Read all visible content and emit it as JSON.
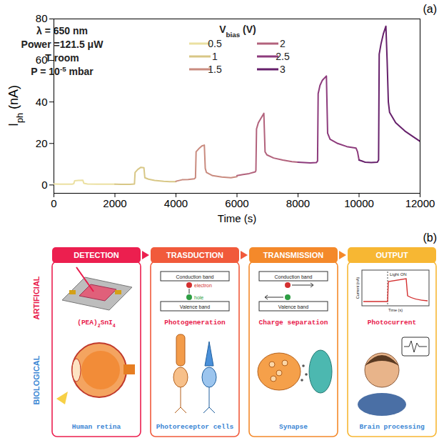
{
  "chart_data": {
    "type": "line",
    "panel_label": "(a)",
    "xlabel": "Time (s)",
    "ylabel": [
      "I",
      {
        "sub": "ph"
      },
      " (nA)"
    ],
    "xlim": [
      0,
      12000
    ],
    "xticks": [
      0,
      2000,
      4000,
      6000,
      8000,
      10000,
      12000
    ],
    "ylim": [
      -4,
      80
    ],
    "yticks": [
      0,
      20,
      40,
      60,
      80
    ],
    "annotations": [
      [
        "λ = 650 nm"
      ],
      [
        "Power =121.5 μW"
      ],
      [
        "T room"
      ],
      [
        "P = 10",
        {
          "sup": "-5"
        },
        " mbar"
      ]
    ],
    "legend": "top",
    "legend_title": [
      "V",
      {
        "sub": "bias"
      },
      " (V)"
    ],
    "series": [
      {
        "name": "0.5",
        "color": "#ebe0a1",
        "x": [
          0,
          200,
          400,
          600,
          650,
          680,
          800,
          950,
          980,
          1100,
          1400,
          1700,
          2000
        ],
        "values": [
          0.5,
          0.4,
          0.4,
          0.4,
          0.6,
          2.0,
          2.2,
          2.3,
          0.8,
          0.5,
          0.4,
          0.4,
          0.4
        ]
      },
      {
        "name": "1",
        "color": "#d8c786",
        "x": [
          2000,
          2200,
          2500,
          2640,
          2660,
          2750,
          2850,
          2950,
          2980,
          3100,
          3300,
          3600,
          3800,
          4000
        ],
        "values": [
          0.4,
          0.3,
          0.3,
          0.5,
          6.0,
          7.5,
          8.5,
          8.3,
          3.5,
          2.8,
          2.2,
          1.8,
          1.6,
          1.6
        ]
      },
      {
        "name": "1.5",
        "color": "#c98b7f",
        "x": [
          4000,
          4200,
          4400,
          4600,
          4640,
          4660,
          4750,
          4850,
          4930,
          4960,
          5000,
          5200,
          5500,
          5800,
          6000
        ],
        "values": [
          1.8,
          2.5,
          2.6,
          3.0,
          3.5,
          16,
          17.5,
          18.8,
          19.2,
          8,
          6,
          4.5,
          3.8,
          3.5,
          4.0
        ]
      },
      {
        "name": "2",
        "color": "#b2627c",
        "x": [
          6000,
          6200,
          6400,
          6600,
          6620,
          6640,
          6700,
          6800,
          6880,
          6920,
          6980,
          7200,
          7500,
          7800,
          8000
        ],
        "values": [
          4.5,
          5.0,
          5.5,
          6.3,
          7,
          27,
          30,
          32.5,
          34.5,
          16,
          14.5,
          13,
          12,
          11.2,
          11
        ]
      },
      {
        "name": "2.5",
        "color": "#8d3b7c",
        "x": [
          8000,
          8200,
          8400,
          8600,
          8640,
          8660,
          8720,
          8800,
          8930,
          8970,
          9050,
          9300,
          9600,
          9900,
          9950,
          10000
        ],
        "values": [
          11,
          10.8,
          10.6,
          10.8,
          11.5,
          44,
          48,
          50.5,
          52.5,
          25,
          22,
          20,
          18.5,
          17.8,
          16,
          12
        ]
      },
      {
        "name": "3",
        "color": "#66206b",
        "x": [
          10000,
          10200,
          10400,
          10600,
          10640,
          10660,
          10720,
          10800,
          10880,
          10920,
          10960,
          11000,
          11200,
          11500,
          11800,
          12000
        ],
        "values": [
          12,
          11,
          10.8,
          11,
          12,
          63,
          68,
          73,
          76.5,
          60,
          40,
          35,
          30,
          26,
          23,
          21
        ]
      }
    ]
  },
  "diagram": {
    "panel_label": "(b)",
    "row_labels": {
      "artificial": "ARTIFICIAL",
      "biological": "BIOLOGICAL"
    },
    "row_colors": {
      "artificial": "#e8194a",
      "biological": "#3a86d4"
    },
    "stages": [
      {
        "title": "DETECTION",
        "color": "#ec1f4f",
        "artificial": [
          "(PEA)",
          {
            "sub": "2"
          },
          "SnI",
          {
            "sub": "4"
          }
        ],
        "biological": "Human retina"
      },
      {
        "title": "TRASDUCTION",
        "color": "#f15a3b",
        "artificial": "Photogeneration",
        "biological": "Photoreceptor cells"
      },
      {
        "title": "TRANSMISSION",
        "color": "#f4892a",
        "artificial": "Charge separation",
        "biological": "Synapse"
      },
      {
        "title": "OUTPUT",
        "color": "#f7b733",
        "artificial": "Photocurrent",
        "biological": "Brain processing"
      }
    ],
    "band_labels": {
      "conduction": "Conduction band",
      "valence": "Valence band",
      "electron": "electron",
      "hole": "hole"
    },
    "inset": {
      "ylabel": "Current (nA)",
      "xlabel": "Time (s)",
      "annotation": "Light ON"
    }
  }
}
